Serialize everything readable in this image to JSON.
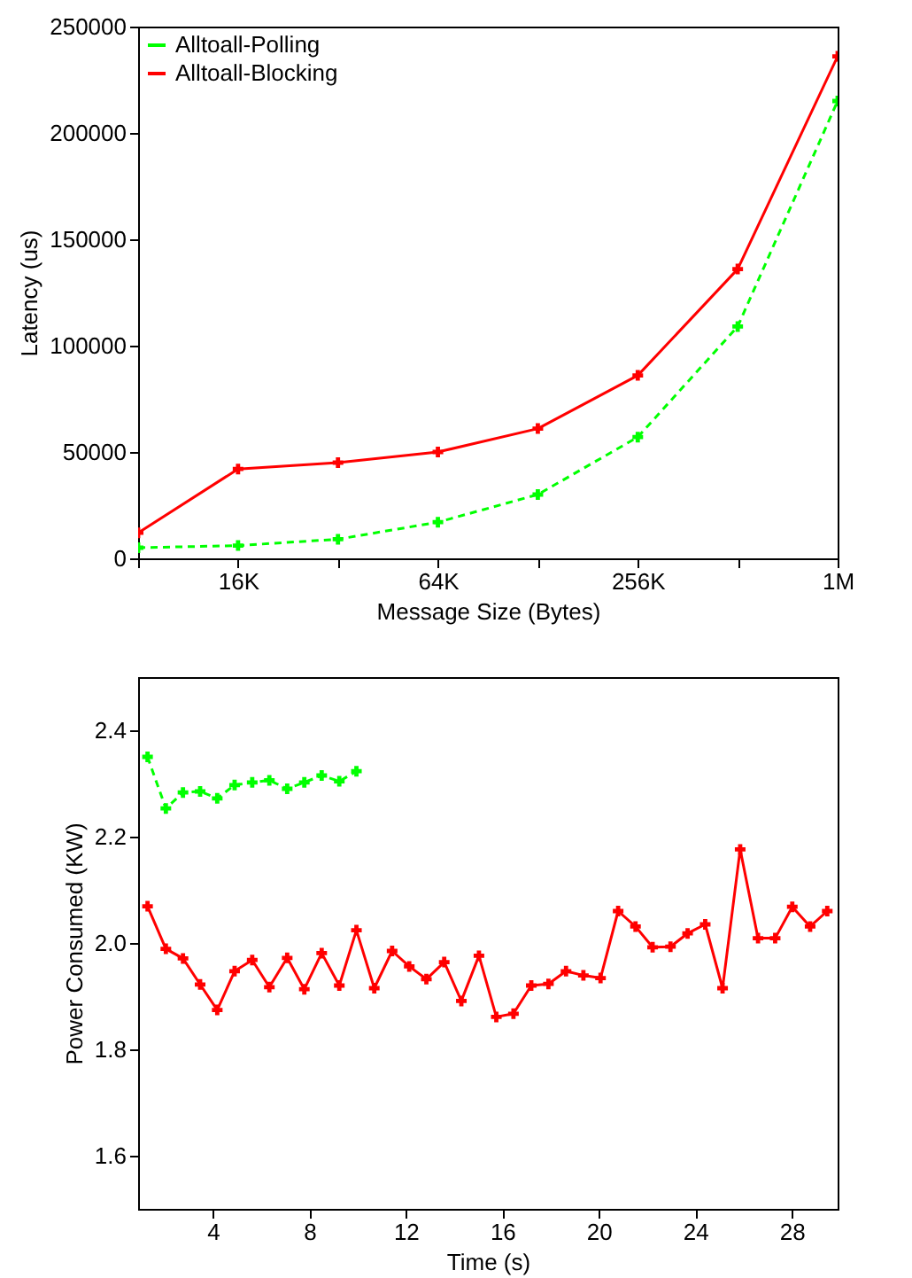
{
  "chart_data": [
    {
      "type": "line",
      "xlabel": "Message Size (Bytes)",
      "ylabel": "Latency (us)",
      "categories": [
        null,
        "16K",
        null,
        "64K",
        null,
        "256K",
        null,
        "1M"
      ],
      "ylim": [
        0,
        250000
      ],
      "yticks": [
        0,
        50000,
        100000,
        150000,
        200000,
        250000
      ],
      "legend": "top left",
      "grid": false,
      "series": [
        {
          "name": "Alltoall-Polling",
          "color": "#00ff00",
          "line_style": "dashed",
          "marker": "cross",
          "values": [
            5000,
            6000,
            9000,
            17000,
            30000,
            57000,
            109000,
            215000
          ]
        },
        {
          "name": "Alltoall-Blocking",
          "color": "#ff0000",
          "line_style": "solid",
          "marker": "cross",
          "values": [
            12000,
            42000,
            45000,
            50000,
            61000,
            86000,
            136000,
            236000
          ]
        }
      ]
    },
    {
      "type": "line",
      "xlabel": "Time (s)",
      "ylabel": "Power Consumed (KW)",
      "xlim": [
        0.9,
        29.9
      ],
      "xticks": [
        4,
        8,
        12,
        16,
        20,
        24,
        28
      ],
      "ylim": [
        1.5,
        2.5
      ],
      "yticks": [
        1.6,
        1.8,
        {
          "value": 2,
          "label": "2.0"
        },
        2.2,
        2.4
      ],
      "legend": "top left",
      "grid": false,
      "series": [
        {
          "name": "Alltoall-Blocking",
          "color": "#ff0000",
          "line_style": "solid",
          "marker": "cross",
          "x": [
            1.29,
            2.05,
            2.76,
            3.47,
            4.18,
            4.9,
            5.63,
            6.34,
            7.08,
            7.79,
            8.51,
            9.24,
            9.95,
            10.69,
            11.43,
            12.14,
            12.85,
            13.59,
            14.3,
            15.03,
            15.75,
            16.46,
            17.2,
            17.91,
            18.64,
            19.36,
            20.07,
            20.8,
            21.52,
            22.23,
            22.97,
            23.68,
            24.41,
            25.13,
            25.86,
            26.6,
            27.31,
            28.02,
            28.76,
            29.47
          ],
          "values": [
            2.069,
            1.989,
            1.971,
            1.922,
            1.874,
            1.947,
            1.968,
            1.917,
            1.972,
            1.913,
            1.981,
            1.92,
            2.024,
            1.915,
            1.985,
            1.956,
            1.932,
            1.964,
            1.891,
            1.976,
            1.861,
            1.867,
            1.92,
            1.923,
            1.947,
            1.939,
            1.934,
            2.06,
            2.031,
            1.992,
            1.993,
            2.018,
            2.035,
            1.915,
            2.176,
            2.009,
            2.009,
            2.068,
            2.031,
            2.06
          ]
        },
        {
          "name": "Alltoall-Polling",
          "color": "#00ff00",
          "line_style": "dashed",
          "marker": "cross",
          "x": [
            1.29,
            2.05,
            2.76,
            3.47,
            4.18,
            4.9,
            5.63,
            6.34,
            7.08,
            7.79,
            8.51,
            9.24,
            9.95
          ],
          "values": [
            2.35,
            2.253,
            2.283,
            2.285,
            2.272,
            2.297,
            2.302,
            2.306,
            2.29,
            2.302,
            2.315,
            2.304,
            2.323
          ]
        }
      ]
    }
  ]
}
